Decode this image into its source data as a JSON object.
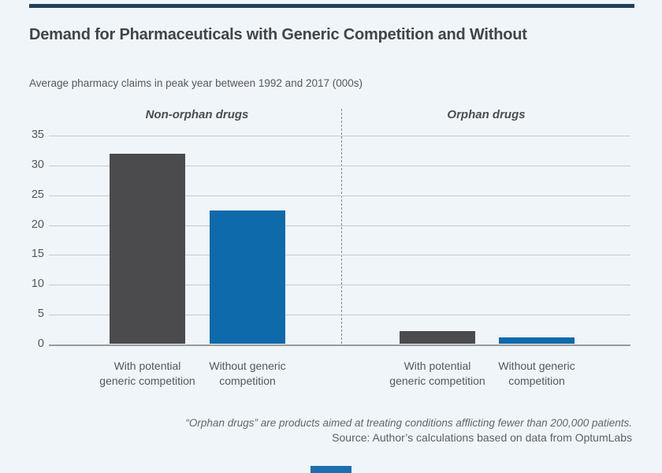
{
  "page": {
    "background": "#f0f5f9",
    "top_rule_color": "#20405e",
    "bottom_mark_color": "#1d6fb0"
  },
  "header": {
    "title": "Demand for Pharmaceuticals with Generic Competition and Without",
    "subtitle": "Average pharmacy claims in peak year between 1992 and 2017 (000s)"
  },
  "chart_data": {
    "type": "bar",
    "title": "Demand for Pharmaceuticals with Generic Competition and Without",
    "subtitle_axis_units": "Average pharmacy claims in peak year between 1992 and 2017 (000s)",
    "categories": [
      "Non-orphan drugs",
      "Orphan drugs"
    ],
    "series": [
      {
        "name": "With potential generic competition",
        "tick_label": "With potential\ngeneric competition",
        "color": "#4b4b4d",
        "values": [
          32,
          2.2
        ]
      },
      {
        "name": "Without generic competition",
        "tick_label": "Without generic\ncompetition",
        "color": "#0f6aab",
        "values": [
          22.5,
          1.1
        ]
      }
    ],
    "ylim": [
      0,
      35
    ],
    "yticks": [
      0,
      5,
      10,
      15,
      20,
      25,
      30,
      35
    ],
    "grid": "on",
    "legend": "none",
    "divider": "dashed vertical line between category sections"
  },
  "footnote": {
    "line1": "“Orphan drugs” are products aimed at treating conditions afflicting fewer than 200,000 patients.",
    "line2": "Source: Author’s calculations based on data from OptumLabs"
  }
}
